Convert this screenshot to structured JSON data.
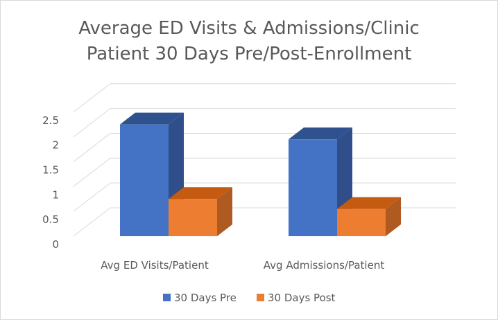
{
  "chart_data": {
    "type": "bar",
    "title": "Average ED Visits & Admissions/Clinic",
    "subtitle": "Patient 30 Days Pre/Post-Enrollment",
    "categories": [
      "Avg ED Visits/Patient",
      "Avg Admissions/Patient"
    ],
    "series": [
      {
        "name": "30 Days Pre",
        "values": [
          2.25,
          1.95
        ],
        "color": "#4472c4",
        "color_top": "#2f528f",
        "color_side": "#2f4e8a"
      },
      {
        "name": "30 Days Post",
        "values": [
          0.75,
          0.55
        ],
        "color": "#ed7d31",
        "color_top": "#c55a11",
        "color_side": "#ae5a21"
      }
    ],
    "y_ticks": [
      "0",
      "0.5",
      "1",
      "1.5",
      "2",
      "2.5"
    ],
    "ylim": [
      0,
      2.5
    ],
    "xlabel": "",
    "ylabel": "",
    "grid": true,
    "legend": "bottom",
    "style": "3d-clustered-column"
  }
}
